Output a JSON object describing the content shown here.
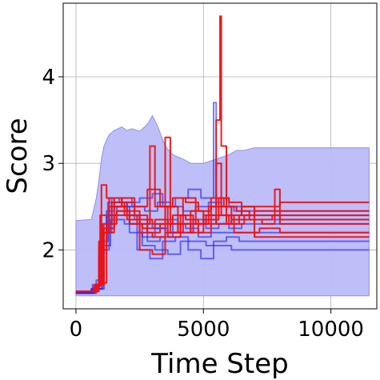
{
  "chart_data": {
    "type": "line",
    "xlabel": "Time Step",
    "ylabel": "Score",
    "xlim": [
      -500,
      11800
    ],
    "ylim": [
      1.32,
      4.85
    ],
    "xticks": [
      0,
      5000,
      10000
    ],
    "yticks": [
      2,
      3,
      4
    ],
    "xtick_labels": [
      "0",
      "5000",
      "10000"
    ],
    "ytick_labels": [
      "2",
      "3",
      "4"
    ],
    "grid": true,
    "legend": "none",
    "colors": {
      "blue": "#2222ee",
      "red": "#ee1111",
      "band": "#bbbbf8"
    },
    "band": {
      "upper": [
        [
          0,
          2.34
        ],
        [
          600,
          2.35
        ],
        [
          800,
          2.6
        ],
        [
          900,
          2.8
        ],
        [
          1000,
          3.05
        ],
        [
          1100,
          3.2
        ],
        [
          1200,
          3.27
        ],
        [
          1300,
          3.33
        ],
        [
          1500,
          3.38
        ],
        [
          1800,
          3.42
        ],
        [
          2000,
          3.38
        ],
        [
          2200,
          3.4
        ],
        [
          2500,
          3.37
        ],
        [
          2800,
          3.45
        ],
        [
          3000,
          3.55
        ],
        [
          3200,
          3.43
        ],
        [
          3500,
          3.2
        ],
        [
          3800,
          3.1
        ],
        [
          4200,
          3.05
        ],
        [
          4500,
          3.0
        ],
        [
          5000,
          3.0
        ],
        [
          5500,
          3.05
        ],
        [
          6000,
          3.1
        ],
        [
          6300,
          3.15
        ],
        [
          6600,
          3.15
        ],
        [
          7000,
          3.18
        ],
        [
          7500,
          3.18
        ],
        [
          11500,
          3.18
        ]
      ],
      "lower": [
        [
          0,
          1.47
        ],
        [
          11500,
          1.47
        ]
      ]
    },
    "series": [
      {
        "color": "blue",
        "values": [
          [
            0,
            1.5
          ],
          [
            500,
            1.52
          ],
          [
            800,
            1.65
          ],
          [
            1000,
            2.2
          ],
          [
            1200,
            2.45
          ],
          [
            1500,
            2.55
          ],
          [
            2000,
            2.4
          ],
          [
            2500,
            2.3
          ],
          [
            3000,
            2.25
          ],
          [
            3500,
            2.35
          ],
          [
            4000,
            2.2
          ],
          [
            4500,
            2.3
          ],
          [
            5000,
            2.35
          ],
          [
            5500,
            2.3
          ],
          [
            6000,
            2.25
          ],
          [
            6500,
            2.3
          ],
          [
            7000,
            2.3
          ],
          [
            11500,
            2.3
          ]
        ]
      },
      {
        "color": "blue",
        "values": [
          [
            0,
            1.5
          ],
          [
            600,
            1.55
          ],
          [
            900,
            1.9
          ],
          [
            1100,
            2.3
          ],
          [
            1400,
            2.6
          ],
          [
            1800,
            2.5
          ],
          [
            2300,
            2.35
          ],
          [
            2800,
            2.1
          ],
          [
            3300,
            2.15
          ],
          [
            3800,
            2.3
          ],
          [
            4300,
            2.25
          ],
          [
            4800,
            2.15
          ],
          [
            5300,
            2.2
          ],
          [
            5800,
            2.2
          ],
          [
            6300,
            2.2
          ],
          [
            11500,
            2.2
          ]
        ]
      },
      {
        "color": "blue",
        "values": [
          [
            0,
            1.5
          ],
          [
            700,
            1.55
          ],
          [
            1000,
            2.0
          ],
          [
            1300,
            2.4
          ],
          [
            1600,
            2.5
          ],
          [
            2100,
            2.2
          ],
          [
            2600,
            2.05
          ],
          [
            3100,
            2.0
          ],
          [
            3600,
            1.95
          ],
          [
            4100,
            2.1
          ],
          [
            4600,
            2.1
          ],
          [
            5100,
            2.05
          ],
          [
            5600,
            2.05
          ],
          [
            6100,
            2.0
          ],
          [
            11500,
            2.0
          ]
        ]
      },
      {
        "color": "blue",
        "values": [
          [
            0,
            1.5
          ],
          [
            650,
            1.6
          ],
          [
            950,
            2.1
          ],
          [
            1250,
            2.55
          ],
          [
            1700,
            2.6
          ],
          [
            2200,
            2.5
          ],
          [
            2700,
            2.45
          ],
          [
            3200,
            2.55
          ],
          [
            3700,
            2.5
          ],
          [
            4200,
            2.45
          ],
          [
            4700,
            2.5
          ],
          [
            5200,
            2.55
          ],
          [
            5700,
            2.5
          ],
          [
            6200,
            2.45
          ],
          [
            11500,
            2.45
          ]
        ]
      },
      {
        "color": "blue",
        "values": [
          [
            0,
            1.5
          ],
          [
            750,
            1.55
          ],
          [
            1050,
            2.05
          ],
          [
            1350,
            2.35
          ],
          [
            1900,
            2.3
          ],
          [
            2400,
            2.0
          ],
          [
            2900,
            1.9
          ],
          [
            3400,
            2.1
          ],
          [
            3900,
            2.15
          ],
          [
            4400,
            2.0
          ],
          [
            4900,
            1.9
          ],
          [
            5400,
            2.1
          ],
          [
            5900,
            2.15
          ],
          [
            6400,
            2.1
          ],
          [
            11500,
            2.1
          ]
        ]
      },
      {
        "color": "blue",
        "values": [
          [
            0,
            1.5
          ],
          [
            800,
            1.55
          ],
          [
            1100,
            2.2
          ],
          [
            1400,
            2.5
          ],
          [
            2000,
            2.55
          ],
          [
            2500,
            2.6
          ],
          [
            3000,
            2.65
          ],
          [
            3400,
            2.5
          ],
          [
            3900,
            2.6
          ],
          [
            4400,
            2.7
          ],
          [
            4900,
            2.6
          ],
          [
            5400,
            3.7
          ],
          [
            5500,
            2.6
          ],
          [
            6000,
            2.5
          ],
          [
            6500,
            2.4
          ],
          [
            11500,
            2.4
          ]
        ]
      },
      {
        "color": "blue",
        "values": [
          [
            0,
            1.5
          ],
          [
            600,
            1.55
          ],
          [
            900,
            2.0
          ],
          [
            1200,
            2.4
          ],
          [
            1600,
            2.45
          ],
          [
            2100,
            2.3
          ],
          [
            2600,
            2.15
          ],
          [
            3100,
            2.25
          ],
          [
            3600,
            2.2
          ],
          [
            4100,
            2.3
          ],
          [
            4600,
            2.35
          ],
          [
            5100,
            2.25
          ],
          [
            5600,
            2.3
          ],
          [
            6100,
            2.35
          ],
          [
            6600,
            2.35
          ],
          [
            11500,
            2.35
          ]
        ]
      },
      {
        "color": "red",
        "values": [
          [
            0,
            1.52
          ],
          [
            700,
            1.55
          ],
          [
            900,
            2.1
          ],
          [
            1000,
            2.75
          ],
          [
            1200,
            2.6
          ],
          [
            1500,
            2.5
          ],
          [
            2000,
            2.4
          ],
          [
            2500,
            2.35
          ],
          [
            3000,
            2.3
          ],
          [
            3500,
            3.3
          ],
          [
            3700,
            2.2
          ],
          [
            4200,
            2.6
          ],
          [
            4700,
            2.3
          ],
          [
            5200,
            2.5
          ],
          [
            5600,
            2.6
          ],
          [
            6000,
            2.55
          ],
          [
            6500,
            2.5
          ],
          [
            7000,
            2.5
          ],
          [
            8000,
            2.55
          ],
          [
            11500,
            2.55
          ]
        ]
      },
      {
        "color": "red",
        "values": [
          [
            0,
            1.52
          ],
          [
            750,
            1.6
          ],
          [
            1000,
            2.2
          ],
          [
            1300,
            2.5
          ],
          [
            1800,
            2.6
          ],
          [
            2300,
            2.4
          ],
          [
            2800,
            2.2
          ],
          [
            3300,
            2.3
          ],
          [
            3800,
            2.4
          ],
          [
            4300,
            2.35
          ],
          [
            4800,
            2.2
          ],
          [
            5300,
            2.5
          ],
          [
            5500,
            3.5
          ],
          [
            5650,
            4.7
          ],
          [
            5700,
            3.2
          ],
          [
            5900,
            2.3
          ],
          [
            6400,
            2.4
          ],
          [
            7000,
            2.45
          ],
          [
            11500,
            2.45
          ]
        ]
      },
      {
        "color": "red",
        "values": [
          [
            0,
            1.52
          ],
          [
            800,
            1.6
          ],
          [
            1050,
            2.3
          ],
          [
            1400,
            2.55
          ],
          [
            1900,
            2.4
          ],
          [
            2400,
            2.3
          ],
          [
            2900,
            3.2
          ],
          [
            3100,
            2.5
          ],
          [
            3600,
            2.15
          ],
          [
            4100,
            2.4
          ],
          [
            4600,
            2.3
          ],
          [
            5100,
            2.4
          ],
          [
            5600,
            2.5
          ],
          [
            6100,
            2.35
          ],
          [
            6600,
            2.4
          ],
          [
            7100,
            2.4
          ],
          [
            11500,
            2.4
          ]
        ]
      },
      {
        "color": "red",
        "values": [
          [
            0,
            1.52
          ],
          [
            850,
            1.6
          ],
          [
            1100,
            2.2
          ],
          [
            1500,
            2.4
          ],
          [
            2000,
            2.35
          ],
          [
            2500,
            2.0
          ],
          [
            3000,
            1.95
          ],
          [
            3500,
            2.2
          ],
          [
            4000,
            2.3
          ],
          [
            4500,
            2.45
          ],
          [
            5000,
            2.3
          ],
          [
            5500,
            3.0
          ],
          [
            5700,
            2.4
          ],
          [
            6200,
            2.2
          ],
          [
            6700,
            2.2
          ],
          [
            7200,
            2.25
          ],
          [
            8000,
            2.2
          ],
          [
            11500,
            2.2
          ]
        ]
      },
      {
        "color": "red",
        "values": [
          [
            0,
            1.52
          ],
          [
            700,
            1.58
          ],
          [
            950,
            2.4
          ],
          [
            1300,
            2.6
          ],
          [
            1800,
            2.55
          ],
          [
            2300,
            2.5
          ],
          [
            2800,
            2.7
          ],
          [
            3300,
            2.5
          ],
          [
            3800,
            2.6
          ],
          [
            4300,
            2.55
          ],
          [
            4800,
            2.45
          ],
          [
            5300,
            2.6
          ],
          [
            5800,
            2.5
          ],
          [
            6300,
            2.45
          ],
          [
            6800,
            2.35
          ],
          [
            7300,
            2.3
          ],
          [
            7800,
            2.7
          ],
          [
            8000,
            2.3
          ],
          [
            11500,
            2.3
          ]
        ]
      },
      {
        "color": "red",
        "values": [
          [
            0,
            1.52
          ],
          [
            900,
            1.62
          ],
          [
            1200,
            2.3
          ],
          [
            1600,
            2.45
          ],
          [
            2100,
            2.3
          ],
          [
            2600,
            2.25
          ],
          [
            3100,
            2.35
          ],
          [
            3600,
            2.3
          ],
          [
            4100,
            2.2
          ],
          [
            4600,
            2.3
          ],
          [
            5100,
            2.35
          ],
          [
            5600,
            2.4
          ],
          [
            6100,
            2.3
          ],
          [
            6600,
            2.35
          ],
          [
            7100,
            2.35
          ],
          [
            7700,
            2.4
          ],
          [
            8000,
            2.35
          ],
          [
            11500,
            2.35
          ]
        ]
      },
      {
        "color": "red",
        "values": [
          [
            0,
            1.52
          ],
          [
            800,
            1.6
          ],
          [
            1100,
            2.25
          ],
          [
            1500,
            2.5
          ],
          [
            2000,
            2.45
          ],
          [
            2500,
            2.2
          ],
          [
            3000,
            2.15
          ],
          [
            3500,
            2.5
          ],
          [
            4000,
            2.3
          ],
          [
            4500,
            2.2
          ],
          [
            5000,
            2.4
          ],
          [
            5500,
            2.3
          ],
          [
            6000,
            2.4
          ],
          [
            6500,
            2.5
          ],
          [
            7000,
            2.15
          ],
          [
            7500,
            2.15
          ],
          [
            11500,
            2.15
          ]
        ]
      }
    ]
  }
}
